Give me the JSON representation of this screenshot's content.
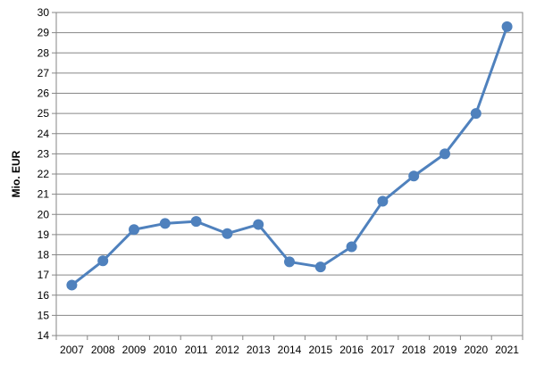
{
  "chart_data": {
    "type": "line",
    "title": "",
    "xlabel": "",
    "ylabel": "Mio. EUR",
    "categories": [
      "2007",
      "2008",
      "2009",
      "2010",
      "2011",
      "2012",
      "2013",
      "2014",
      "2015",
      "2016",
      "2017",
      "2018",
      "2019",
      "2020",
      "2021"
    ],
    "series": [
      {
        "values": [
          16.5,
          17.7,
          19.25,
          19.55,
          19.65,
          19.05,
          19.5,
          17.65,
          17.4,
          18.4,
          20.65,
          21.9,
          23.0,
          25.0,
          29.3
        ],
        "color": "#4F81BD"
      }
    ],
    "ylim": [
      14,
      30
    ],
    "yticks": [
      14,
      15,
      16,
      17,
      18,
      19,
      20,
      21,
      22,
      23,
      24,
      25,
      26,
      27,
      28,
      29,
      30
    ],
    "grid": true,
    "legend": "none"
  }
}
